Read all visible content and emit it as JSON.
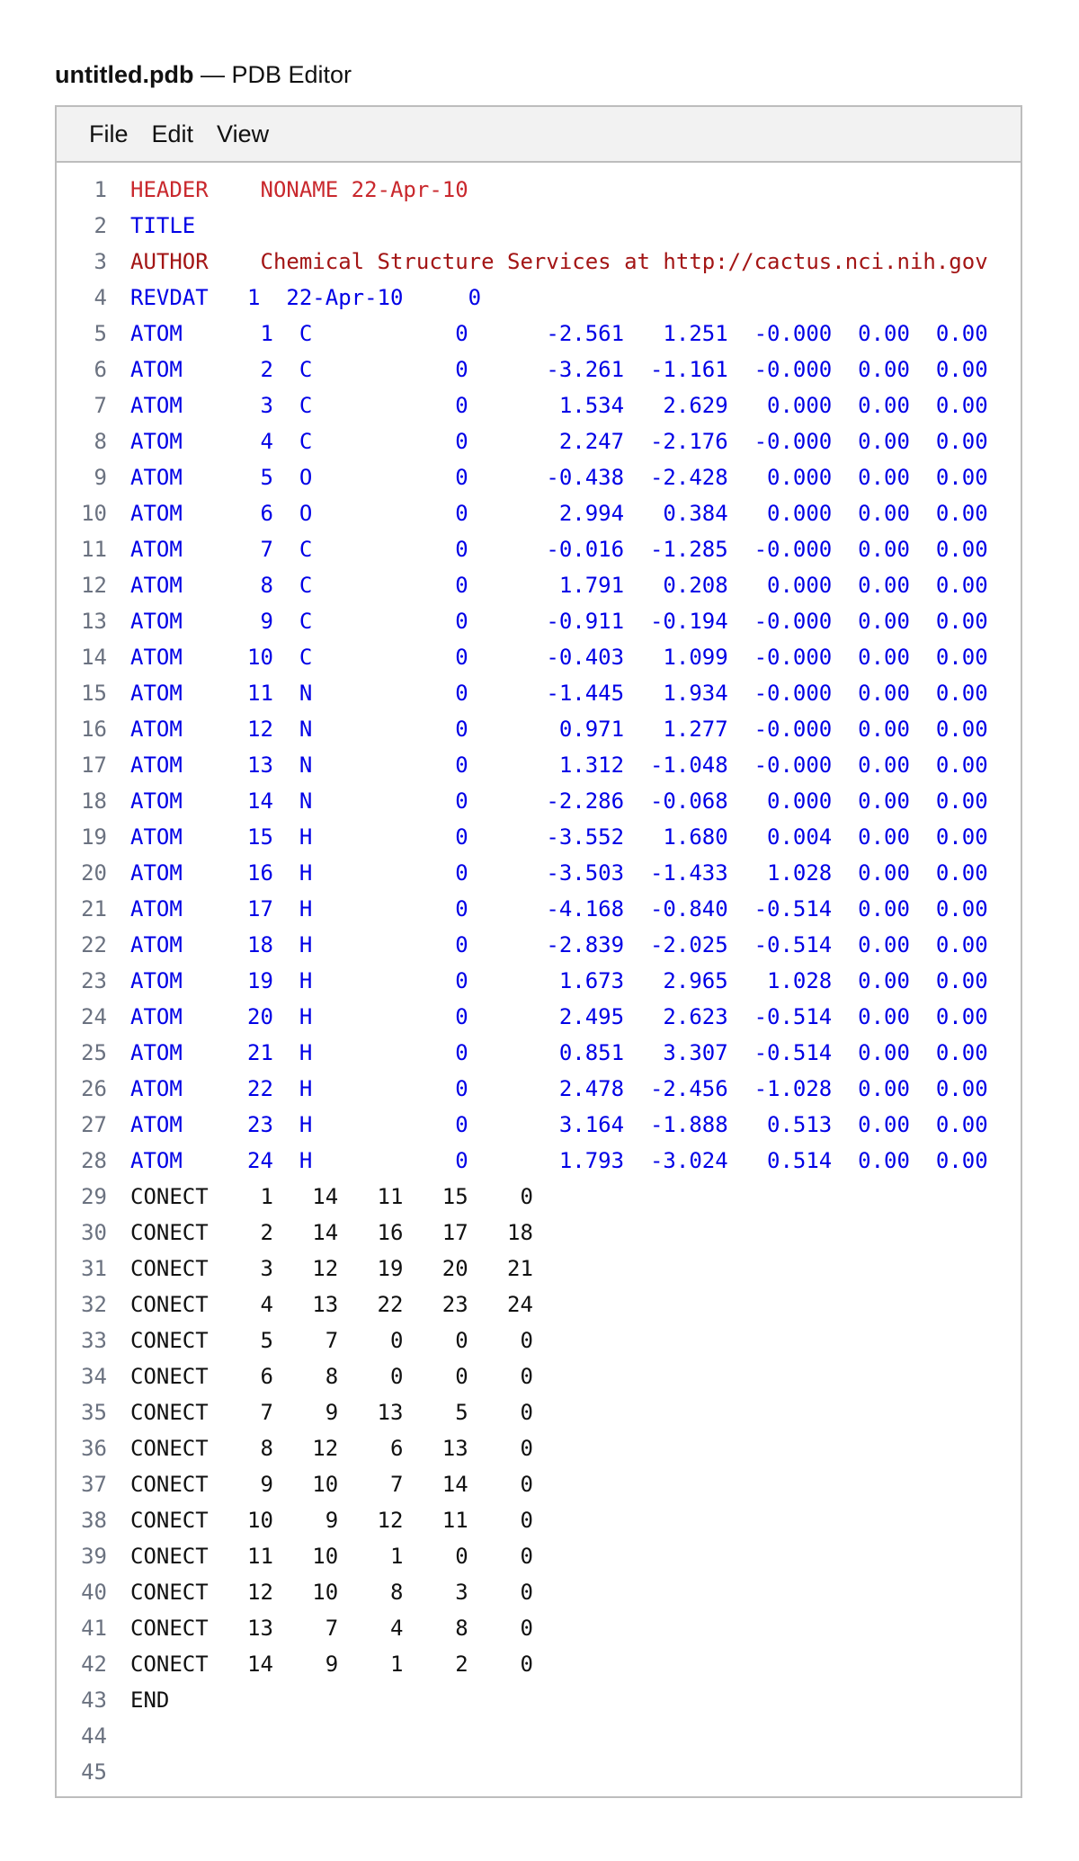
{
  "window": {
    "file_name": "untitled.pdb",
    "separator": " — ",
    "app_name": "PDB Editor"
  },
  "menu": [
    "File",
    "Edit",
    "View"
  ],
  "colors": {
    "header": "#c9282d",
    "author": "#a31515",
    "record": "#0000e6",
    "plain": "#111111",
    "line_number": "#6b7280"
  },
  "lines": [
    {
      "n": "1",
      "kind": "header",
      "text": "HEADER    NONAME 22-Apr-10"
    },
    {
      "n": "2",
      "kind": "blue",
      "text": "TITLE"
    },
    {
      "n": "3",
      "kind": "author",
      "text": "AUTHOR    Chemical Structure Services at http://cactus.nci.nih.gov"
    },
    {
      "n": "4",
      "kind": "blue",
      "text": "REVDAT   1  22-Apr-10     0"
    },
    {
      "n": "5",
      "kind": "blue",
      "text": "ATOM      1  C           0      -2.561   1.251  -0.000  0.00  0.00"
    },
    {
      "n": "6",
      "kind": "blue",
      "text": "ATOM      2  C           0      -3.261  -1.161  -0.000  0.00  0.00"
    },
    {
      "n": "7",
      "kind": "blue",
      "text": "ATOM      3  C           0       1.534   2.629   0.000  0.00  0.00"
    },
    {
      "n": "8",
      "kind": "blue",
      "text": "ATOM      4  C           0       2.247  -2.176  -0.000  0.00  0.00"
    },
    {
      "n": "9",
      "kind": "blue",
      "text": "ATOM      5  O           0      -0.438  -2.428   0.000  0.00  0.00"
    },
    {
      "n": "10",
      "kind": "blue",
      "text": "ATOM      6  O           0       2.994   0.384   0.000  0.00  0.00"
    },
    {
      "n": "11",
      "kind": "blue",
      "text": "ATOM      7  C           0      -0.016  -1.285  -0.000  0.00  0.00"
    },
    {
      "n": "12",
      "kind": "blue",
      "text": "ATOM      8  C           0       1.791   0.208   0.000  0.00  0.00"
    },
    {
      "n": "13",
      "kind": "blue",
      "text": "ATOM      9  C           0      -0.911  -0.194  -0.000  0.00  0.00"
    },
    {
      "n": "14",
      "kind": "blue",
      "text": "ATOM     10  C           0      -0.403   1.099  -0.000  0.00  0.00"
    },
    {
      "n": "15",
      "kind": "blue",
      "text": "ATOM     11  N           0      -1.445   1.934  -0.000  0.00  0.00"
    },
    {
      "n": "16",
      "kind": "blue",
      "text": "ATOM     12  N           0       0.971   1.277  -0.000  0.00  0.00"
    },
    {
      "n": "17",
      "kind": "blue",
      "text": "ATOM     13  N           0       1.312  -1.048  -0.000  0.00  0.00"
    },
    {
      "n": "18",
      "kind": "blue",
      "text": "ATOM     14  N           0      -2.286  -0.068   0.000  0.00  0.00"
    },
    {
      "n": "19",
      "kind": "blue",
      "text": "ATOM     15  H           0      -3.552   1.680   0.004  0.00  0.00"
    },
    {
      "n": "20",
      "kind": "blue",
      "text": "ATOM     16  H           0      -3.503  -1.433   1.028  0.00  0.00"
    },
    {
      "n": "21",
      "kind": "blue",
      "text": "ATOM     17  H           0      -4.168  -0.840  -0.514  0.00  0.00"
    },
    {
      "n": "22",
      "kind": "blue",
      "text": "ATOM     18  H           0      -2.839  -2.025  -0.514  0.00  0.00"
    },
    {
      "n": "23",
      "kind": "blue",
      "text": "ATOM     19  H           0       1.673   2.965   1.028  0.00  0.00"
    },
    {
      "n": "24",
      "kind": "blue",
      "text": "ATOM     20  H           0       2.495   2.623  -0.514  0.00  0.00"
    },
    {
      "n": "25",
      "kind": "blue",
      "text": "ATOM     21  H           0       0.851   3.307  -0.514  0.00  0.00"
    },
    {
      "n": "26",
      "kind": "blue",
      "text": "ATOM     22  H           0       2.478  -2.456  -1.028  0.00  0.00"
    },
    {
      "n": "27",
      "kind": "blue",
      "text": "ATOM     23  H           0       3.164  -1.888   0.513  0.00  0.00"
    },
    {
      "n": "28",
      "kind": "blue",
      "text": "ATOM     24  H           0       1.793  -3.024   0.514  0.00  0.00"
    },
    {
      "n": "29",
      "kind": "plain",
      "text": "CONECT    1   14   11   15    0"
    },
    {
      "n": "30",
      "kind": "plain",
      "text": "CONECT    2   14   16   17   18"
    },
    {
      "n": "31",
      "kind": "plain",
      "text": "CONECT    3   12   19   20   21"
    },
    {
      "n": "32",
      "kind": "plain",
      "text": "CONECT    4   13   22   23   24"
    },
    {
      "n": "33",
      "kind": "plain",
      "text": "CONECT    5    7    0    0    0"
    },
    {
      "n": "34",
      "kind": "plain",
      "text": "CONECT    6    8    0    0    0"
    },
    {
      "n": "35",
      "kind": "plain",
      "text": "CONECT    7    9   13    5    0"
    },
    {
      "n": "36",
      "kind": "plain",
      "text": "CONECT    8   12    6   13    0"
    },
    {
      "n": "37",
      "kind": "plain",
      "text": "CONECT    9   10    7   14    0"
    },
    {
      "n": "38",
      "kind": "plain",
      "text": "CONECT   10    9   12   11    0"
    },
    {
      "n": "39",
      "kind": "plain",
      "text": "CONECT   11   10    1    0    0"
    },
    {
      "n": "40",
      "kind": "plain",
      "text": "CONECT   12   10    8    3    0"
    },
    {
      "n": "41",
      "kind": "plain",
      "text": "CONECT   13    7    4    8    0"
    },
    {
      "n": "42",
      "kind": "plain",
      "text": "CONECT   14    9    1    2    0"
    },
    {
      "n": "43",
      "kind": "plain",
      "text": "END"
    },
    {
      "n": "44",
      "kind": "plain",
      "text": ""
    },
    {
      "n": "45",
      "kind": "plain",
      "text": ""
    }
  ]
}
